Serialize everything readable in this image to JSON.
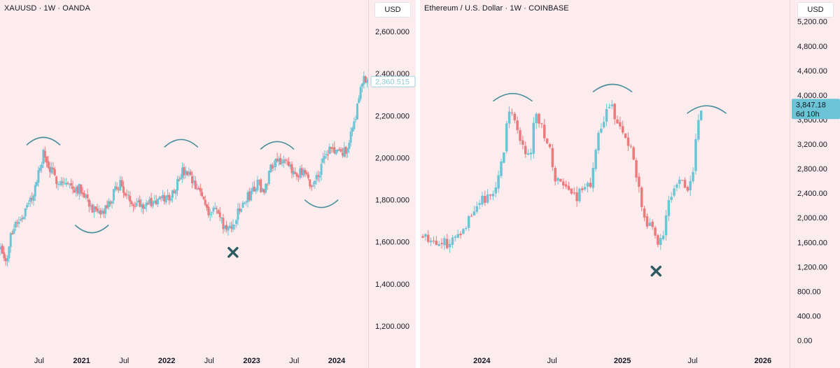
{
  "panels": {
    "left": {
      "title": "XAUUSD · 1W · OANDA",
      "currency": "USD"
    },
    "right": {
      "title": "Ethereum / U.S. Dollar · 1W · COINBASE",
      "currency": "USD"
    }
  },
  "colors": {
    "background": "#fdecee",
    "up": "#6cc5d6",
    "down": "#ec7a7d",
    "arc": "#4a8f9c",
    "cross": "#2e5b63",
    "last_price_badge": "#6cc5d6"
  },
  "chart_data": [
    {
      "type": "candlestick",
      "symbol": "XAUUSD",
      "interval": "1W",
      "source": "OANDA",
      "ylim": [
        1000,
        2750
      ],
      "y_ticks": [
        "1,200.000",
        "1,400.000",
        "1,600.000",
        "1,800.000",
        "2,000.000",
        "2,200.000",
        "2,400.000",
        "2,600.000"
      ],
      "y_tick_values": [
        1200,
        1400,
        1600,
        1800,
        2000,
        2200,
        2400,
        2600
      ],
      "x_ticks": [
        {
          "label": "Jul",
          "bold": false
        },
        {
          "label": "2021",
          "bold": true
        },
        {
          "label": "Jul",
          "bold": false
        },
        {
          "label": "2022",
          "bold": true
        },
        {
          "label": "Jul",
          "bold": false
        },
        {
          "label": "2023",
          "bold": true
        },
        {
          "label": "Jul",
          "bold": false
        },
        {
          "label": "2024",
          "bold": true
        }
      ],
      "x_tick_dates": [
        2020.5,
        2021.0,
        2021.5,
        2022.0,
        2022.5,
        2023.0,
        2023.5,
        2024.0
      ],
      "xlim": [
        2020.04,
        2024.37
      ],
      "last_price": "2,360.515",
      "last_price_value": 2360.515,
      "path": [
        [
          2020.05,
          1590
        ],
        [
          2020.1,
          1530
        ],
        [
          2020.12,
          1480
        ],
        [
          2020.15,
          1600
        ],
        [
          2020.2,
          1680
        ],
        [
          2020.25,
          1700
        ],
        [
          2020.3,
          1720
        ],
        [
          2020.38,
          1780
        ],
        [
          2020.45,
          1850
        ],
        [
          2020.55,
          2020
        ],
        [
          2020.6,
          1960
        ],
        [
          2020.7,
          1900
        ],
        [
          2020.8,
          1880
        ],
        [
          2020.9,
          1860
        ],
        [
          2021.0,
          1850
        ],
        [
          2021.05,
          1820
        ],
        [
          2021.12,
          1760
        ],
        [
          2021.2,
          1720
        ],
        [
          2021.25,
          1740
        ],
        [
          2021.33,
          1780
        ],
        [
          2021.4,
          1850
        ],
        [
          2021.45,
          1880
        ],
        [
          2021.55,
          1800
        ],
        [
          2021.65,
          1790
        ],
        [
          2021.75,
          1780
        ],
        [
          2021.85,
          1790
        ],
        [
          2021.95,
          1800
        ],
        [
          2022.05,
          1820
        ],
        [
          2022.12,
          1880
        ],
        [
          2022.17,
          1930
        ],
        [
          2022.25,
          1920
        ],
        [
          2022.33,
          1860
        ],
        [
          2022.42,
          1820
        ],
        [
          2022.5,
          1740
        ],
        [
          2022.58,
          1760
        ],
        [
          2022.66,
          1680
        ],
        [
          2022.75,
          1650
        ],
        [
          2022.82,
          1720
        ],
        [
          2022.9,
          1780
        ],
        [
          2023.0,
          1840
        ],
        [
          2023.08,
          1880
        ],
        [
          2023.15,
          1830
        ],
        [
          2023.22,
          1960
        ],
        [
          2023.3,
          2000
        ],
        [
          2023.38,
          1980
        ],
        [
          2023.46,
          1940
        ],
        [
          2023.55,
          1930
        ],
        [
          2023.62,
          1920
        ],
        [
          2023.7,
          1860
        ],
        [
          2023.78,
          1920
        ],
        [
          2023.85,
          1990
        ],
        [
          2023.92,
          2040
        ],
        [
          2024.0,
          2030
        ],
        [
          2024.08,
          2020
        ],
        [
          2024.15,
          2080
        ],
        [
          2024.22,
          2200
        ],
        [
          2024.28,
          2330
        ],
        [
          2024.33,
          2380
        ],
        [
          2024.36,
          2360
        ]
      ],
      "arcs": [
        {
          "date": 2020.55,
          "price": 2060,
          "direction": "up"
        },
        {
          "date": 2021.12,
          "price": 1680,
          "direction": "down"
        },
        {
          "date": 2022.17,
          "price": 2050,
          "direction": "up"
        },
        {
          "date": 2023.3,
          "price": 2040,
          "direction": "up"
        },
        {
          "date": 2023.82,
          "price": 1800,
          "direction": "down"
        }
      ],
      "markers": [
        {
          "type": "x",
          "date": 2022.78,
          "price": 1550
        }
      ]
    },
    {
      "type": "candlestick",
      "symbol": "ETHUSD",
      "interval": "1W",
      "source": "COINBASE",
      "ylim": [
        -450,
        5550
      ],
      "y_ticks": [
        "0.00",
        "400.00",
        "800.00",
        "1,200.00",
        "1,600.00",
        "2,000.00",
        "2,400.00",
        "2,800.00",
        "3,200.00",
        "3,600.00",
        "4,000.00",
        "4,400.00",
        "4,800.00",
        "5,200.00"
      ],
      "y_tick_values": [
        0,
        400,
        800,
        1200,
        1600,
        2000,
        2400,
        2800,
        3200,
        3600,
        4000,
        4400,
        4800,
        5200
      ],
      "x_ticks": [
        {
          "label": "2024",
          "bold": true
        },
        {
          "label": "Jul",
          "bold": false
        },
        {
          "label": "2025",
          "bold": true
        },
        {
          "label": "Jul",
          "bold": false
        },
        {
          "label": "2026",
          "bold": true
        }
      ],
      "x_tick_dates": [
        2024.0,
        2024.5,
        2025.0,
        2025.5,
        2026.0
      ],
      "xlim": [
        2023.56,
        2026.19
      ],
      "last_price": "3,847.18",
      "last_price_value": 3847.18,
      "countdown": "6d 10h",
      "path": [
        [
          2023.58,
          1720
        ],
        [
          2023.64,
          1650
        ],
        [
          2023.7,
          1600
        ],
        [
          2023.75,
          1580
        ],
        [
          2023.8,
          1650
        ],
        [
          2023.85,
          1800
        ],
        [
          2023.9,
          1950
        ],
        [
          2023.95,
          2200
        ],
        [
          2024.0,
          2300
        ],
        [
          2024.05,
          2300
        ],
        [
          2024.1,
          2500
        ],
        [
          2024.15,
          3000
        ],
        [
          2024.18,
          3600
        ],
        [
          2024.22,
          3750
        ],
        [
          2024.25,
          3450
        ],
        [
          2024.3,
          3100
        ],
        [
          2024.35,
          3000
        ],
        [
          2024.38,
          3800
        ],
        [
          2024.42,
          3500
        ],
        [
          2024.48,
          3200
        ],
        [
          2024.52,
          2600
        ],
        [
          2024.58,
          2500
        ],
        [
          2024.63,
          2400
        ],
        [
          2024.68,
          2350
        ],
        [
          2024.73,
          2500
        ],
        [
          2024.78,
          2600
        ],
        [
          2024.83,
          3300
        ],
        [
          2024.88,
          3650
        ],
        [
          2024.92,
          3900
        ],
        [
          2024.96,
          3500
        ],
        [
          2025.02,
          3300
        ],
        [
          2025.06,
          3100
        ],
        [
          2025.1,
          2700
        ],
        [
          2025.14,
          2200
        ],
        [
          2025.18,
          1900
        ],
        [
          2025.22,
          1800
        ],
        [
          2025.26,
          1550
        ],
        [
          2025.3,
          1800
        ],
        [
          2025.34,
          2400
        ],
        [
          2025.38,
          2500
        ],
        [
          2025.42,
          2600
        ],
        [
          2025.46,
          2400
        ],
        [
          2025.5,
          2700
        ],
        [
          2025.54,
          3600
        ],
        [
          2025.57,
          3847.18
        ]
      ],
      "arcs": [
        {
          "date": 2024.22,
          "price": 3900,
          "direction": "up"
        },
        {
          "date": 2024.93,
          "price": 4050,
          "direction": "up"
        },
        {
          "date": 2025.6,
          "price": 3700,
          "direction": "up"
        }
      ],
      "markers": [
        {
          "type": "x",
          "date": 2025.24,
          "price": 1130
        }
      ]
    }
  ]
}
